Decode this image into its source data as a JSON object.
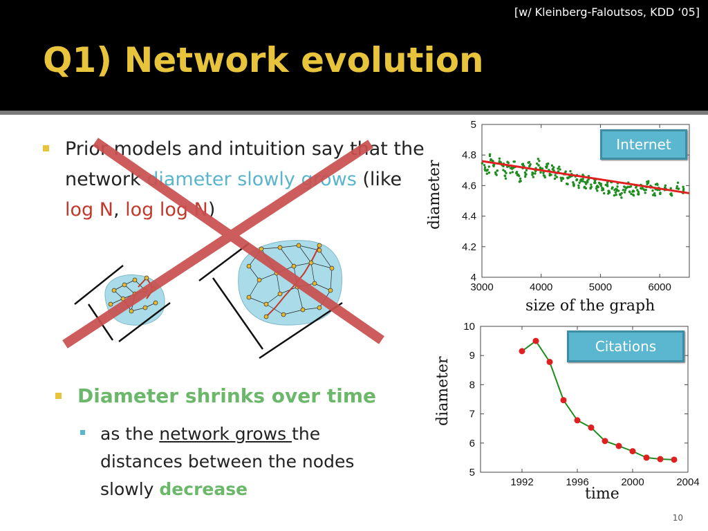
{
  "header": {
    "citation": "[w/ Kleinberg-Faloutsos, KDD ‘05]",
    "title": "Q1) Network evolution"
  },
  "bullets": {
    "b1_part1": "Prior models and intuition say that the network ",
    "b1_cyan": "diameter slowly grows",
    "b1_part2": " (like ",
    "b1_red1": "log N",
    "b1_comma": ", ",
    "b1_red2": "log log N",
    "b1_end": ")",
    "b2": "Diameter shrinks over time",
    "b3_part1": "as the ",
    "b3_underline": "network grows ",
    "b3_part2": "the distances between the nodes slowly ",
    "b3_green": "decrease"
  },
  "colors": {
    "title_yellow": "#e8c43c",
    "cyan": "#5ab4cc",
    "red": "#c0392b",
    "green": "#6bb86b",
    "cross_red": "#c9504f"
  },
  "page_number": "10",
  "chart_data": [
    {
      "type": "scatter",
      "tag": "Internet",
      "xlabel": "size of the graph",
      "ylabel": "diameter",
      "xlim": [
        3000,
        6500
      ],
      "ylim": [
        4,
        5
      ],
      "xticks": [
        "3000",
        "4000",
        "5000",
        "6000"
      ],
      "yticks": [
        "4",
        "4.2",
        "4.4",
        "4.6",
        "4.8",
        "5"
      ],
      "trend": {
        "x": [
          3000,
          6500
        ],
        "y": [
          4.76,
          4.55
        ]
      },
      "points": [
        [
          3000,
          4.75
        ],
        [
          3050,
          4.72
        ],
        [
          3100,
          4.7
        ],
        [
          3150,
          4.78
        ],
        [
          3200,
          4.74
        ],
        [
          3250,
          4.69
        ],
        [
          3300,
          4.76
        ],
        [
          3350,
          4.72
        ],
        [
          3400,
          4.67
        ],
        [
          3450,
          4.73
        ],
        [
          3500,
          4.7
        ],
        [
          3550,
          4.74
        ],
        [
          3600,
          4.69
        ],
        [
          3650,
          4.65
        ],
        [
          3700,
          4.72
        ],
        [
          3750,
          4.68
        ],
        [
          3800,
          4.73
        ],
        [
          3850,
          4.66
        ],
        [
          3900,
          4.7
        ],
        [
          3950,
          4.75
        ],
        [
          4000,
          4.71
        ],
        [
          4050,
          4.67
        ],
        [
          4100,
          4.74
        ],
        [
          4150,
          4.69
        ],
        [
          4200,
          4.72
        ],
        [
          4250,
          4.66
        ],
        [
          4300,
          4.7
        ],
        [
          4350,
          4.64
        ],
        [
          4400,
          4.68
        ],
        [
          4450,
          4.63
        ],
        [
          4500,
          4.67
        ],
        [
          4550,
          4.62
        ],
        [
          4600,
          4.66
        ],
        [
          4650,
          4.61
        ],
        [
          4700,
          4.65
        ],
        [
          4750,
          4.6
        ],
        [
          4800,
          4.64
        ],
        [
          4850,
          4.59
        ],
        [
          4900,
          4.63
        ],
        [
          4950,
          4.58
        ],
        [
          5000,
          4.62
        ],
        [
          5050,
          4.57
        ],
        [
          5100,
          4.61
        ],
        [
          5150,
          4.55
        ],
        [
          5200,
          4.6
        ],
        [
          5250,
          4.56
        ],
        [
          5300,
          4.59
        ],
        [
          5350,
          4.54
        ],
        [
          5400,
          4.58
        ],
        [
          5450,
          4.6
        ],
        [
          5500,
          4.57
        ],
        [
          5550,
          4.55
        ],
        [
          5600,
          4.59
        ],
        [
          5650,
          4.56
        ],
        [
          5700,
          4.6
        ],
        [
          5750,
          4.57
        ],
        [
          5800,
          4.61
        ],
        [
          5850,
          4.58
        ],
        [
          5900,
          4.56
        ],
        [
          5950,
          4.59
        ],
        [
          6000,
          4.57
        ],
        [
          6100,
          4.58
        ],
        [
          6200,
          4.56
        ],
        [
          6300,
          4.6
        ],
        [
          6400,
          4.57
        ]
      ]
    },
    {
      "type": "line",
      "tag": "Citations",
      "xlabel": "time",
      "ylabel": "diameter",
      "xlim": [
        1989,
        2004
      ],
      "ylim": [
        5,
        10
      ],
      "xticks": [
        "1992",
        "1996",
        "2000",
        "2004"
      ],
      "yticks": [
        "5",
        "6",
        "7",
        "8",
        "9",
        "10"
      ],
      "x": [
        1992,
        1993,
        1994,
        1995,
        1996,
        1997,
        1998,
        1999,
        2000,
        2001,
        2002,
        2003
      ],
      "y": [
        9.15,
        9.5,
        8.78,
        7.47,
        6.78,
        6.53,
        6.07,
        5.9,
        5.72,
        5.5,
        5.45,
        5.43
      ]
    }
  ]
}
